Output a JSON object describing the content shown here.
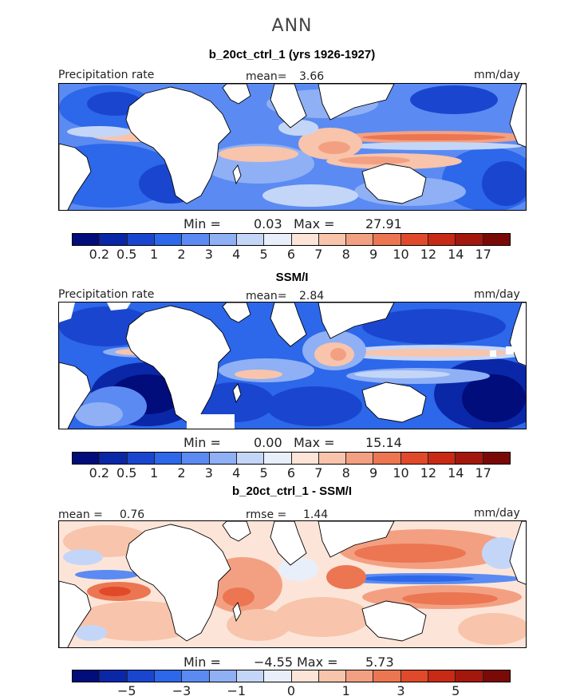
{
  "header": {
    "season": "ANN"
  },
  "panels": [
    {
      "title": "b_20ct_ctrl_1 (yrs 1926-1927)",
      "left_label": "Precipitation rate",
      "center_label": "mean=",
      "center_value": "3.66",
      "right_label": "mm/day",
      "min_label": "Min =",
      "min_value": "0.03",
      "max_label": "Max =",
      "max_value": "27.91"
    },
    {
      "title": "SSM/I",
      "left_label": "Precipitation rate",
      "center_label": "mean=",
      "center_value": "2.84",
      "right_label": "mm/day",
      "min_label": "Min =",
      "min_value": "0.00",
      "max_label": "Max =",
      "max_value": "15.14"
    },
    {
      "title": "b_20ct_ctrl_1 - SSM/I",
      "left_label": "mean =",
      "left_value": "0.76",
      "center_label": "rmse =",
      "center_value": "1.44",
      "right_label": "mm/day",
      "min_label": "Min =",
      "min_value": "−4.55",
      "max_label": "Max =",
      "max_value": "5.73"
    }
  ],
  "abs_colorbar": {
    "colors": [
      "#000d7a",
      "#0a27a8",
      "#1a46cf",
      "#2d67ea",
      "#5b8bf2",
      "#8fb0f5",
      "#c4d6f8",
      "#e8eefa",
      "#fce5d8",
      "#f8c4ab",
      "#f3a082",
      "#ec7652",
      "#e04a2a",
      "#c82a16",
      "#a4170c",
      "#7a0a08"
    ],
    "tick_labels": [
      "0.2",
      "0.5",
      "1",
      "2",
      "3",
      "4",
      "5",
      "6",
      "7",
      "8",
      "9",
      "10",
      "12",
      "14",
      "17"
    ]
  },
  "diff_colorbar": {
    "colors": [
      "#000d7a",
      "#0a27a8",
      "#1a46cf",
      "#2d67ea",
      "#5b8bf2",
      "#8fb0f5",
      "#c4d6f8",
      "#e8eefa",
      "#fce5d8",
      "#f8c4ab",
      "#f3a082",
      "#ec7652",
      "#e04a2a",
      "#c82a16",
      "#a4170c",
      "#7a0a08"
    ],
    "tick_labels": [
      "−5",
      "−3",
      "−1",
      "0",
      "1",
      "3",
      "5"
    ]
  }
}
